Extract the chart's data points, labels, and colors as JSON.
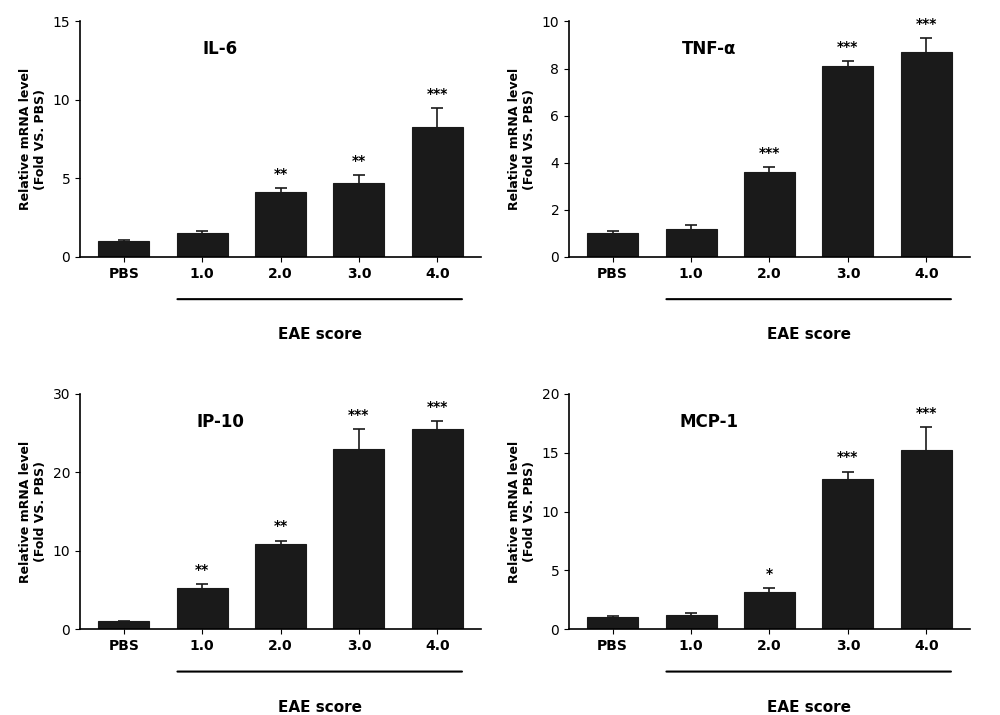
{
  "panels": [
    {
      "title": "IL-6",
      "categories": [
        "PBS",
        "1.0",
        "2.0",
        "3.0",
        "4.0"
      ],
      "values": [
        1.0,
        1.5,
        4.1,
        4.7,
        8.3
      ],
      "errors": [
        0.1,
        0.15,
        0.3,
        0.5,
        1.2
      ],
      "significance": [
        "",
        "",
        "**",
        "**",
        "***"
      ],
      "ylim": [
        0,
        15
      ],
      "yticks": [
        0,
        5,
        10,
        15
      ],
      "eae_from": 1,
      "ylabel": "Relative mRNA level\n(Fold VS. PBS)"
    },
    {
      "title": "TNF-α",
      "categories": [
        "PBS",
        "1.0",
        "2.0",
        "3.0",
        "4.0"
      ],
      "values": [
        1.0,
        1.2,
        3.6,
        8.1,
        8.7
      ],
      "errors": [
        0.1,
        0.15,
        0.2,
        0.2,
        0.6
      ],
      "significance": [
        "",
        "",
        "***",
        "***",
        "***"
      ],
      "ylim": [
        0,
        10
      ],
      "yticks": [
        0,
        2,
        4,
        6,
        8,
        10
      ],
      "eae_from": 1,
      "ylabel": "Relative mRNA level\n(Fold VS. PBS)"
    },
    {
      "title": "IP-10",
      "categories": [
        "PBS",
        "1.0",
        "2.0",
        "3.0",
        "4.0"
      ],
      "values": [
        1.0,
        5.2,
        10.8,
        23.0,
        25.5
      ],
      "errors": [
        0.1,
        0.5,
        0.5,
        2.5,
        1.0
      ],
      "significance": [
        "",
        "**",
        "**",
        "***",
        "***"
      ],
      "ylim": [
        0,
        30
      ],
      "yticks": [
        0,
        10,
        20,
        30
      ],
      "eae_from": 1,
      "ylabel": "Relative mRNA level\n(Fold VS. PBS)"
    },
    {
      "title": "MCP-1",
      "categories": [
        "PBS",
        "1.0",
        "2.0",
        "3.0",
        "4.0"
      ],
      "values": [
        1.0,
        1.2,
        3.2,
        12.8,
        15.2
      ],
      "errors": [
        0.1,
        0.15,
        0.3,
        0.6,
        2.0
      ],
      "significance": [
        "",
        "",
        "*",
        "***",
        "***"
      ],
      "ylim": [
        0,
        20
      ],
      "yticks": [
        0,
        5,
        10,
        15,
        20
      ],
      "eae_from": 1,
      "ylabel": "Relative mRNA level\n(Fold VS. PBS)"
    }
  ],
  "bar_color": "#1a1a1a",
  "bar_edge_color": "#1a1a1a",
  "error_color": "#1a1a1a",
  "xlabel": "EAE score",
  "background_color": "#ffffff",
  "capsize": 4
}
